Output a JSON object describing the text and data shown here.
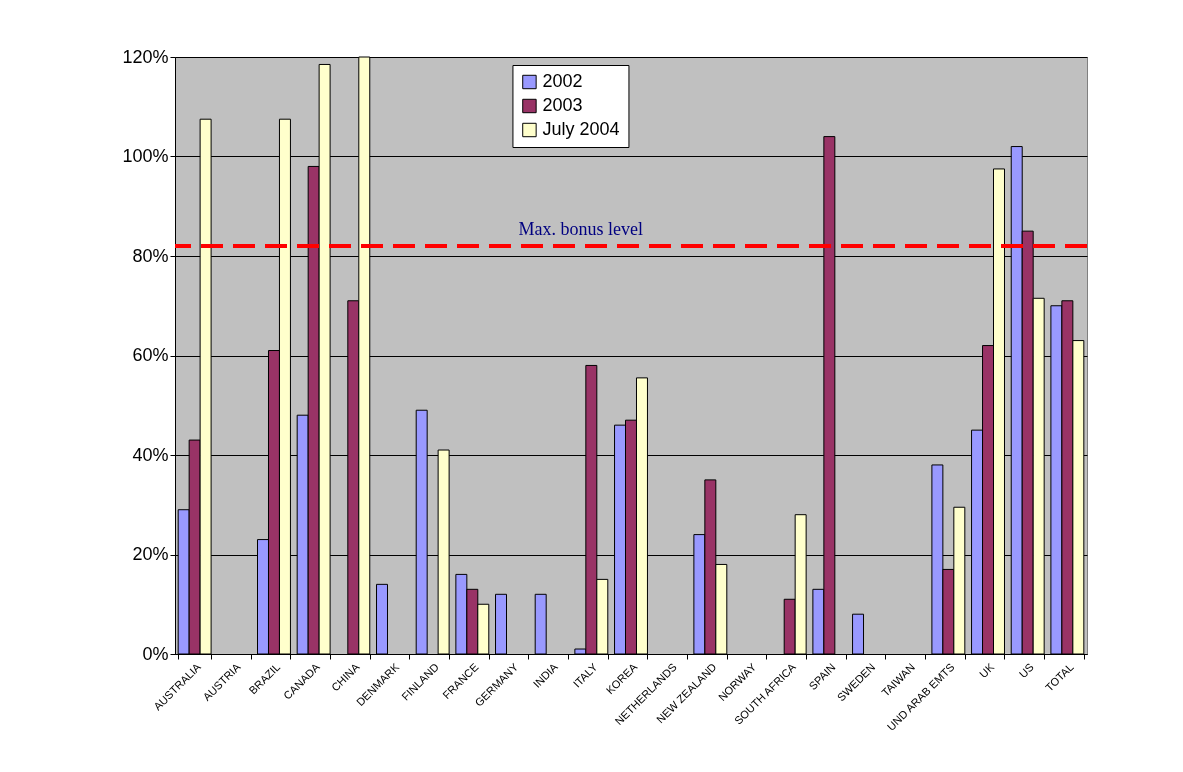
{
  "chart_data": {
    "type": "bar",
    "categories": [
      "AUSTRALIA",
      "AUSTRIA",
      "BRAZIL",
      "CANADA",
      "CHINA",
      "DENMARK",
      "FINLAND",
      "FRANCE",
      "GERMANY",
      "INDIA",
      "ITALY",
      "KOREA",
      "NETHERLANDS",
      "NEW ZEALAND",
      "NORWAY",
      "SOUTH AFRICA",
      "SPAIN",
      "SWEDEN",
      "TAIWAN",
      "UND ARAB EMTS",
      "UK",
      "US",
      "TOTAL"
    ],
    "series": [
      {
        "name": "2002",
        "color": "#9999ff",
        "values": [
          29,
          null,
          23,
          48,
          null,
          14,
          49,
          16,
          12,
          12,
          1,
          46,
          null,
          24,
          null,
          null,
          13,
          8,
          null,
          38,
          45,
          102,
          70
        ]
      },
      {
        "name": "2003",
        "color": "#993366",
        "values": [
          43,
          null,
          61,
          98,
          71,
          null,
          null,
          13,
          null,
          null,
          58,
          47,
          null,
          35,
          null,
          11,
          104,
          null,
          null,
          17,
          62,
          85,
          71
        ]
      },
      {
        "name": "July 2004",
        "color": "#ffffcc",
        "values": [
          107.5,
          null,
          107.5,
          118.5,
          120,
          null,
          41,
          10,
          null,
          null,
          15,
          55.5,
          null,
          18,
          null,
          28,
          null,
          null,
          null,
          29.5,
          97.5,
          71.5,
          63
        ]
      }
    ],
    "ylim": [
      0,
      120
    ],
    "yticks": [
      {
        "value": 0,
        "label": "0%"
      },
      {
        "value": 20,
        "label": "20%"
      },
      {
        "value": 40,
        "label": "40%"
      },
      {
        "value": 60,
        "label": "60%"
      },
      {
        "value": 80,
        "label": "80%"
      },
      {
        "value": 100,
        "label": "100%"
      },
      {
        "value": 120,
        "label": "120%"
      }
    ],
    "ref_lines": [
      {
        "axis": "y",
        "value": 82,
        "label": "Max. bonus level",
        "color": "#ff0000",
        "line_style": "dashed"
      }
    ],
    "grid": "y",
    "legend": "top"
  }
}
